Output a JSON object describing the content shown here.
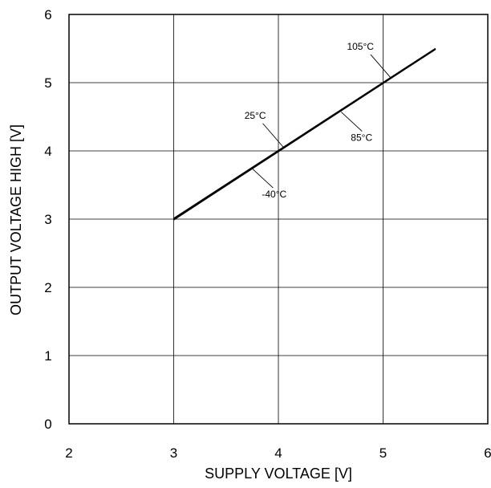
{
  "chart_data": {
    "type": "line",
    "title": "",
    "xlabel": "SUPPLY VOLTAGE [V]",
    "ylabel": "OUTPUT VOLTAGE HIGH [V]",
    "xlim": [
      2,
      6
    ],
    "ylim": [
      0,
      6
    ],
    "x_ticks": [
      "2",
      "3",
      "4",
      "5",
      "6"
    ],
    "y_ticks": [
      "0",
      "1",
      "2",
      "3",
      "4",
      "5",
      "6"
    ],
    "grid": true,
    "legend": "none",
    "series": [
      {
        "name": "-40°C",
        "x": [
          3.0,
          5.5
        ],
        "y": [
          2.99,
          5.49
        ]
      },
      {
        "name": "25°C",
        "x": [
          3.0,
          5.5
        ],
        "y": [
          3.0,
          5.49
        ]
      },
      {
        "name": "85°C",
        "x": [
          3.0,
          5.5
        ],
        "y": [
          3.0,
          5.5
        ]
      },
      {
        "name": "105°C",
        "x": [
          3.0,
          5.5
        ],
        "y": [
          3.01,
          5.5
        ]
      }
    ],
    "annotations": [
      {
        "text": "105°C",
        "series": "105°C",
        "point": [
          5.08,
          5.06
        ],
        "anchor": "above-left"
      },
      {
        "text": "25°C",
        "series": "25°C",
        "point": [
          4.05,
          4.05
        ],
        "anchor": "above-left"
      },
      {
        "text": "85°C",
        "series": "85°C",
        "point": [
          4.6,
          4.57
        ],
        "anchor": "below-right"
      },
      {
        "text": "-40°C",
        "series": "-40°C",
        "point": [
          3.75,
          3.74
        ],
        "anchor": "below-right"
      }
    ]
  }
}
